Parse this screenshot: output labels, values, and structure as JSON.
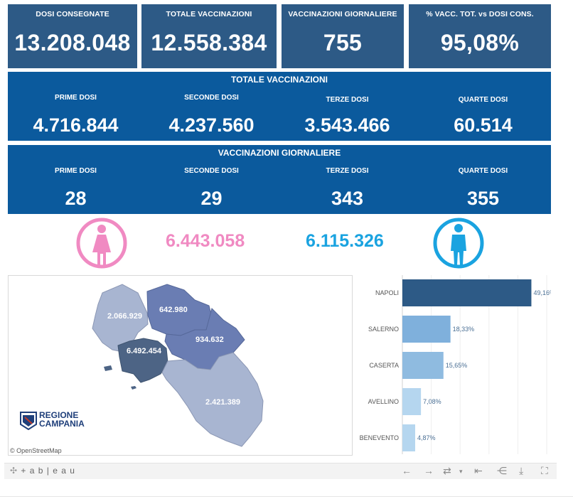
{
  "kpis": [
    {
      "label": "DOSI  CONSEGNATE",
      "value": "13.208.048"
    },
    {
      "label": "TOTALE VACCINAZIONI",
      "value": "12.558.384"
    },
    {
      "label": "VACCINAZIONI GIORNALIERE",
      "value": "755"
    },
    {
      "label": "% VACC. TOT. vs DOSI CONS.",
      "value": "95,08%"
    }
  ],
  "totale_vaccinazioni": {
    "title": "TOTALE VACCINAZIONI",
    "cols": [
      {
        "label": "PRIME DOSI",
        "value": "4.716.844"
      },
      {
        "label": "SECONDE DOSI",
        "value": "4.237.560"
      },
      {
        "label": "TERZE DOSI",
        "value": "3.543.466"
      },
      {
        "label": "QUARTE DOSI",
        "value": "60.514"
      }
    ]
  },
  "vaccinazioni_giornaliere": {
    "title": "VACCINAZIONI GIORNALIERE",
    "cols": [
      {
        "label": "PRIME DOSI",
        "value": "28"
      },
      {
        "label": "SECONDE DOSI",
        "value": "29"
      },
      {
        "label": "TERZE DOSI",
        "value": "343"
      },
      {
        "label": "QUARTE DOSI",
        "value": "355"
      }
    ]
  },
  "gender": {
    "female_icon": "female-person-icon",
    "female_value": "6.443.058",
    "female_color": "#f08ac2",
    "male_icon": "male-person-icon",
    "male_value": "6.115.326",
    "male_color": "#1aa3e0"
  },
  "map": {
    "province_values": {
      "caserta": "2.066.929",
      "benevento": "642.980",
      "avellino": "934.632",
      "napoli": "6.492.454",
      "salerno": "2.421.389"
    },
    "logo_line1": "REGIONE",
    "logo_line2": "CAMPANIA",
    "attribution": "© OpenStreetMap"
  },
  "chart_data": {
    "type": "bar",
    "orientation": "horizontal",
    "categories": [
      "NAPOLI",
      "SALERNO",
      "CASERTA",
      "AVELLINO",
      "BENEVENTO"
    ],
    "values": [
      49.16,
      18.33,
      15.65,
      7.08,
      4.87
    ],
    "labels": [
      "49,16%",
      "18,33%",
      "15,65%",
      "7,08%",
      "4,87%"
    ],
    "colors": [
      "#2d5a86",
      "#7fb0dc",
      "#8fbbe0",
      "#b5d6ef",
      "#b5d6ef"
    ],
    "xlim": [
      0,
      55
    ],
    "grid": true
  },
  "toolbar": {
    "brand": "+ a b | e a u",
    "icons": [
      "undo-icon",
      "redo-icon",
      "revert-icon",
      "reset-icon",
      "share-icon",
      "download-icon",
      "fullscreen-icon"
    ]
  }
}
